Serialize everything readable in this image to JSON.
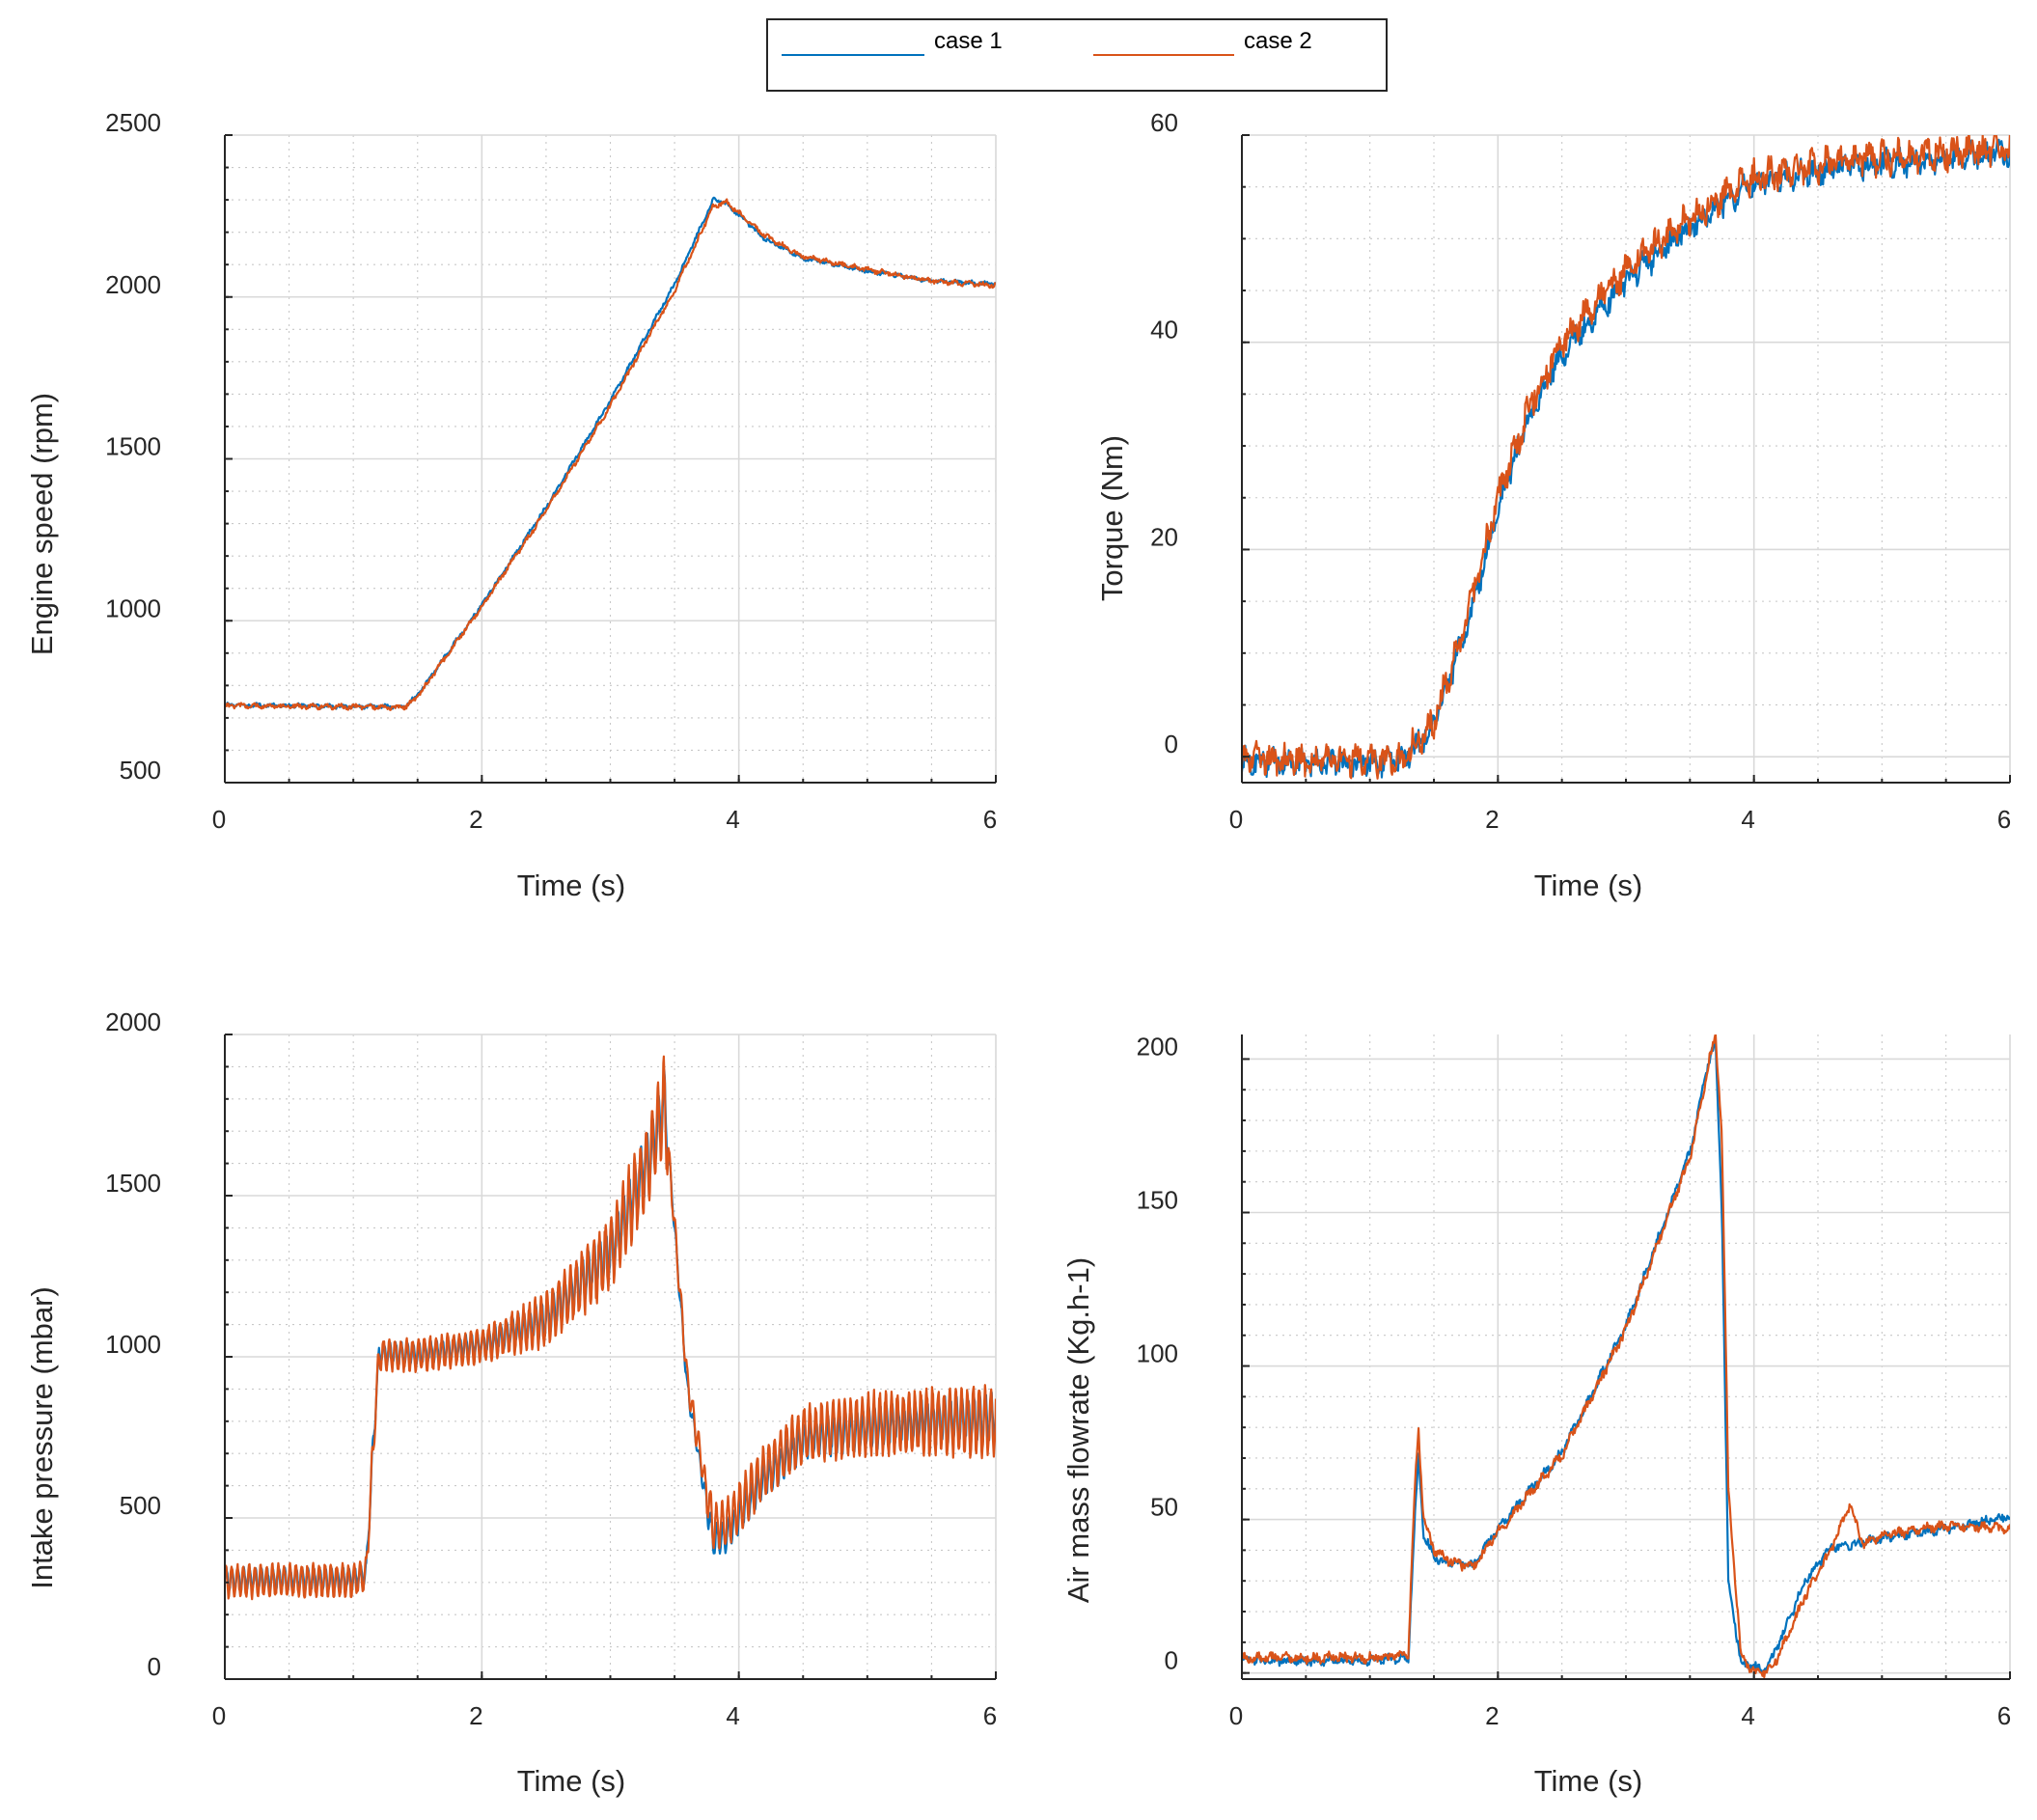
{
  "colors": {
    "case1": "#0072BD",
    "case2": "#D95319",
    "axis": "#262626",
    "grid": "#d9d9d9"
  },
  "legend": {
    "entries": [
      "case 1",
      "case 2"
    ]
  },
  "chart_data": [
    {
      "id": "engine-speed",
      "type": "line",
      "title": "",
      "xlabel": "Time (s)",
      "ylabel": "Engine speed (rpm)",
      "xlim": [
        0,
        6
      ],
      "ylim": [
        500,
        2500
      ],
      "xticks": [
        0,
        2,
        4,
        6
      ],
      "yticks": [
        500,
        1000,
        1500,
        2000,
        2500
      ],
      "xminor": 0.5,
      "yminor": 100,
      "series": [
        {
          "name": "case 1",
          "noise": 5,
          "x": [
            0,
            0.5,
            1.0,
            1.4,
            1.5,
            2.0,
            2.5,
            3.0,
            3.5,
            3.8,
            3.9,
            4.2,
            4.5,
            5.0,
            5.5,
            6.0
          ],
          "y": [
            740,
            738,
            735,
            735,
            770,
            1050,
            1350,
            1680,
            2040,
            2300,
            2290,
            2180,
            2120,
            2080,
            2050,
            2040
          ]
        },
        {
          "name": "case 2",
          "noise": 6,
          "x": [
            0,
            0.5,
            1.0,
            1.4,
            1.5,
            2.0,
            2.5,
            3.0,
            3.5,
            3.8,
            3.9,
            4.2,
            4.5,
            5.0,
            5.5,
            6.0
          ],
          "y": [
            738,
            736,
            734,
            733,
            765,
            1045,
            1340,
            1665,
            2020,
            2280,
            2295,
            2190,
            2125,
            2085,
            2050,
            2035
          ]
        }
      ]
    },
    {
      "id": "torque",
      "type": "line",
      "title": "",
      "xlabel": "Time (s)",
      "ylabel": "Torque (Nm)",
      "xlim": [
        0,
        6
      ],
      "ylim": [
        -2.5,
        60
      ],
      "xticks": [
        0,
        2,
        4,
        6
      ],
      "yticks": [
        0,
        20,
        40,
        60
      ],
      "xminor": 0.5,
      "yminor": 5,
      "series": [
        {
          "name": "case 1",
          "noise": 1.0,
          "x": [
            0,
            0.5,
            1.0,
            1.25,
            1.5,
            1.75,
            2.0,
            2.25,
            2.5,
            3.0,
            3.5,
            4.0,
            4.5,
            5.0,
            5.5,
            6.0
          ],
          "y": [
            -0.5,
            -0.5,
            -0.5,
            -0.5,
            3,
            12,
            24,
            33,
            39,
            46,
            51,
            55.5,
            56.5,
            57.3,
            57.8,
            58.3
          ]
        },
        {
          "name": "case 2",
          "noise": 1.2,
          "x": [
            0,
            0.5,
            1.0,
            1.25,
            1.5,
            1.75,
            2.0,
            2.25,
            2.5,
            3.0,
            3.5,
            4.0,
            4.5,
            5.0,
            5.5,
            6.0
          ],
          "y": [
            -0.3,
            -0.3,
            -0.3,
            -0.3,
            3.5,
            13,
            25,
            34,
            40,
            47,
            52,
            56,
            57,
            57.8,
            58.3,
            58.8
          ]
        }
      ]
    },
    {
      "id": "intake-pressure",
      "type": "line",
      "title": "",
      "xlabel": "Time (s)",
      "ylabel": "Intake pressure (mbar)",
      "xlim": [
        0,
        6
      ],
      "ylim": [
        0,
        2000
      ],
      "xticks": [
        0,
        2,
        4,
        6
      ],
      "yticks": [
        0,
        500,
        1000,
        1500,
        2000
      ],
      "xminor": 0.5,
      "yminor": 100,
      "series": [
        {
          "name": "case 1",
          "osc": 32,
          "x": [
            0,
            0.5,
            1.0,
            1.1,
            1.15,
            1.2,
            1.5,
            2.0,
            2.5,
            3.0,
            3.3,
            3.42,
            3.5,
            3.6,
            3.8,
            3.9,
            4.2,
            4.5,
            5.0,
            5.5,
            6.0
          ],
          "y": [
            310,
            310,
            310,
            330,
            700,
            1010,
            1010,
            1040,
            1120,
            1330,
            1620,
            1800,
            1400,
            900,
            430,
            440,
            620,
            740,
            780,
            800,
            810
          ]
        },
        {
          "name": "case 2",
          "osc": 48,
          "x": [
            0,
            0.5,
            1.0,
            1.1,
            1.15,
            1.2,
            1.5,
            2.0,
            2.5,
            3.0,
            3.3,
            3.42,
            3.5,
            3.6,
            3.8,
            3.9,
            4.2,
            4.5,
            5.0,
            5.5,
            6.0
          ],
          "y": [
            305,
            305,
            305,
            325,
            690,
            1005,
            1005,
            1035,
            1115,
            1320,
            1610,
            1790,
            1410,
            920,
            470,
            480,
            640,
            760,
            790,
            800,
            800
          ]
        }
      ]
    },
    {
      "id": "air-mass-flowrate",
      "type": "line",
      "title": "",
      "xlabel": "Time (s)",
      "ylabel": "Air mass flowrate (Kg.h-1)",
      "xlim": [
        0,
        6
      ],
      "ylim": [
        -2,
        208
      ],
      "xticks": [
        0,
        2,
        4,
        6
      ],
      "yticks": [
        0,
        50,
        100,
        150,
        200
      ],
      "xminor": 0.5,
      "yminor": 10,
      "series": [
        {
          "name": "case 1",
          "noise": 1.2,
          "x": [
            0,
            0.5,
            1.0,
            1.3,
            1.35,
            1.38,
            1.42,
            1.5,
            1.6,
            1.8,
            2.0,
            2.5,
            3.0,
            3.5,
            3.6,
            3.65,
            3.7,
            3.75,
            3.8,
            3.9,
            4.0,
            4.1,
            4.2,
            4.4,
            4.6,
            4.8,
            5.0,
            5.5,
            6.0
          ],
          "y": [
            4,
            4,
            4,
            5,
            50,
            70,
            45,
            38,
            36,
            35,
            47,
            72,
            113,
            170,
            190,
            200,
            205,
            150,
            30,
            3,
            2,
            1,
            10,
            30,
            41,
            42,
            44,
            47,
            51
          ]
        },
        {
          "name": "case 2",
          "noise": 1.3,
          "x": [
            0,
            0.5,
            1.0,
            1.3,
            1.35,
            1.38,
            1.42,
            1.5,
            1.6,
            1.8,
            2.0,
            2.5,
            3.0,
            3.5,
            3.6,
            3.65,
            3.7,
            3.75,
            3.8,
            3.9,
            4.0,
            4.1,
            4.2,
            4.4,
            4.6,
            4.75,
            4.85,
            5.0,
            5.5,
            6.0
          ],
          "y": [
            5,
            5,
            5,
            6,
            60,
            79,
            50,
            40,
            37,
            34,
            46,
            71,
            112,
            168,
            188,
            200,
            207,
            175,
            60,
            5,
            0,
            0,
            6,
            25,
            40,
            55,
            42,
            45,
            48,
            47
          ]
        }
      ]
    }
  ]
}
